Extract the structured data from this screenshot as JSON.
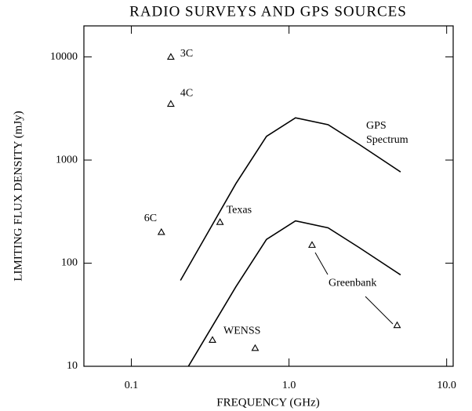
{
  "chart_data": {
    "type": "scatter",
    "title": "RADIO SURVEYS AND GPS SOURCES",
    "x_label": "FREQUENCY (GHz)",
    "y_label": "LIMITING FLUX DENSITY (mJy)",
    "log_x": true,
    "log_y": true,
    "xlim": [
      0.05,
      11
    ],
    "ylim": [
      10,
      20000
    ],
    "xticks": [
      0.1,
      {
        "value": 1,
        "label": "1.0"
      },
      {
        "value": 10,
        "label": "10.0"
      }
    ],
    "yticks": [
      10,
      100,
      1000,
      10000
    ],
    "points": {
      "x": [
        0.178,
        0.178,
        0.155,
        0.365,
        0.327,
        0.61,
        1.4,
        4.85
      ],
      "values": [
        10000,
        3500,
        200,
        250,
        18,
        15,
        150,
        25
      ],
      "labels": [
        "3C",
        "4C",
        "6C",
        "Texas",
        "WENSS",
        null,
        "Greenbank",
        null
      ]
    },
    "curves": [
      {
        "x": [
          0.205,
          0.46,
          0.72,
          1.1,
          1.77,
          2.78,
          5.1
        ],
        "values": [
          68,
          590,
          1700,
          2570,
          2200,
          1420,
          767
        ]
      },
      {
        "x": [
          0.23,
          0.46,
          0.72,
          1.1,
          1.77,
          2.78,
          5.1
        ],
        "values": [
          10,
          59,
          170,
          257,
          220,
          142,
          77
        ]
      }
    ],
    "annotation": [
      "GPS",
      "Spectrum"
    ],
    "color": "#000000"
  }
}
